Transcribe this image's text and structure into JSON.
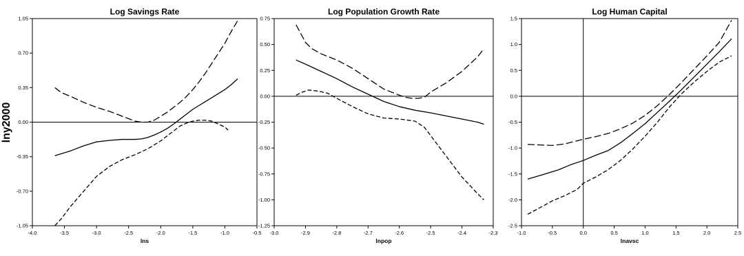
{
  "figure": {
    "shared_ylabel": "lny2000"
  },
  "chart_data": [
    {
      "type": "line",
      "title": "Log Savings Rate",
      "xlabel": "lns",
      "ylabel": "lny2000",
      "xlim": [
        -4.0,
        -0.5
      ],
      "ylim": [
        -1.05,
        1.05
      ],
      "xticks": [
        "-4.0",
        "-3.5",
        "-3.0",
        "-2.5",
        "-2.0",
        "-1.5",
        "-1.0",
        "-0.5"
      ],
      "yticks": [
        "-1.05",
        "-0.70",
        "-0.35",
        "0.00",
        "0.35",
        "0.70",
        "1.05"
      ],
      "reference_lines": {
        "horizontal": 0
      },
      "series": [
        {
          "style": "solid",
          "x": [
            -3.65,
            -3.4,
            -3.2,
            -3.0,
            -2.8,
            -2.6,
            -2.4,
            -2.3,
            -2.2,
            -2.1,
            -2.0,
            -1.9,
            -1.8,
            -1.7,
            -1.6,
            -1.5,
            -1.4,
            -1.3,
            -1.2,
            -1.1,
            -1.0,
            -0.9,
            -0.8
          ],
          "y": [
            -0.34,
            -0.29,
            -0.24,
            -0.2,
            -0.185,
            -0.175,
            -0.175,
            -0.17,
            -0.155,
            -0.13,
            -0.1,
            -0.065,
            -0.02,
            0.03,
            0.08,
            0.13,
            0.17,
            0.21,
            0.25,
            0.29,
            0.33,
            0.38,
            0.44
          ]
        },
        {
          "style": "dashed-upper",
          "x": [
            -3.65,
            -3.55,
            -3.4,
            -3.2,
            -3.0,
            -2.8,
            -2.6,
            -2.4,
            -2.3,
            -2.2,
            -2.1,
            -2.0,
            -1.9,
            -1.8,
            -1.7,
            -1.6,
            -1.5,
            -1.4,
            -1.3,
            -1.2,
            -1.1,
            -1.0,
            -0.9,
            -0.8
          ],
          "y": [
            0.35,
            0.3,
            0.26,
            0.2,
            0.15,
            0.11,
            0.06,
            0.01,
            0.0,
            0.0,
            0.02,
            0.06,
            0.1,
            0.15,
            0.2,
            0.26,
            0.33,
            0.41,
            0.5,
            0.6,
            0.7,
            0.8,
            0.92,
            1.03
          ]
        },
        {
          "style": "dashed-lower",
          "x": [
            -3.65,
            -3.55,
            -3.4,
            -3.2,
            -3.0,
            -2.8,
            -2.6,
            -2.4,
            -2.2,
            -2.1,
            -2.0,
            -1.9,
            -1.8,
            -1.7,
            -1.6,
            -1.5,
            -1.4,
            -1.3,
            -1.2,
            -1.1,
            -1.0,
            -0.95
          ],
          "y": [
            -1.05,
            -0.98,
            -0.85,
            -0.7,
            -0.55,
            -0.45,
            -0.38,
            -0.33,
            -0.27,
            -0.23,
            -0.19,
            -0.14,
            -0.09,
            -0.04,
            -0.01,
            0.01,
            0.02,
            0.02,
            0.01,
            -0.02,
            -0.05,
            -0.08
          ]
        }
      ]
    },
    {
      "type": "line",
      "title": "Log Population Growth Rate",
      "xlabel": "lnpop",
      "ylabel": "lny2000",
      "xlim": [
        -3.0,
        -2.3
      ],
      "ylim": [
        -1.25,
        0.75
      ],
      "xticks": [
        "-3.0",
        "-2.9",
        "-2.8",
        "-2.7",
        "-2.6",
        "-2.5",
        "-2.4",
        "-2.3"
      ],
      "yticks": [
        "-1.25",
        "-1.00",
        "-0.75",
        "-0.50",
        "-0.25",
        "0.00",
        "0.25",
        "0.50",
        "0.75"
      ],
      "reference_lines": {
        "horizontal": 0
      },
      "series": [
        {
          "style": "solid",
          "x": [
            -2.93,
            -2.9,
            -2.85,
            -2.8,
            -2.75,
            -2.7,
            -2.65,
            -2.6,
            -2.55,
            -2.5,
            -2.45,
            -2.4,
            -2.35,
            -2.33
          ],
          "y": [
            0.35,
            0.31,
            0.24,
            0.17,
            0.09,
            0.02,
            -0.05,
            -0.1,
            -0.135,
            -0.16,
            -0.19,
            -0.22,
            -0.25,
            -0.27
          ]
        },
        {
          "style": "dashed-upper",
          "x": [
            -2.93,
            -2.9,
            -2.88,
            -2.85,
            -2.8,
            -2.75,
            -2.7,
            -2.65,
            -2.6,
            -2.58,
            -2.56,
            -2.54,
            -2.52,
            -2.5,
            -2.45,
            -2.4,
            -2.35,
            -2.33
          ],
          "y": [
            0.69,
            0.52,
            0.46,
            0.41,
            0.35,
            0.27,
            0.17,
            0.07,
            0.01,
            -0.01,
            -0.02,
            -0.02,
            -0.01,
            0.04,
            0.13,
            0.24,
            0.38,
            0.46
          ]
        },
        {
          "style": "dashed-lower",
          "x": [
            -2.93,
            -2.91,
            -2.89,
            -2.86,
            -2.83,
            -2.8,
            -2.75,
            -2.7,
            -2.65,
            -2.6,
            -2.55,
            -2.52,
            -2.5,
            -2.45,
            -2.4,
            -2.35,
            -2.33
          ],
          "y": [
            0.01,
            0.04,
            0.06,
            0.05,
            0.03,
            -0.02,
            -0.1,
            -0.17,
            -0.21,
            -0.22,
            -0.24,
            -0.3,
            -0.38,
            -0.58,
            -0.78,
            -0.94,
            -1.0
          ]
        }
      ]
    },
    {
      "type": "line",
      "title": "Log Human Capital",
      "xlabel": "lnavsc",
      "ylabel": "lny2000",
      "xlim": [
        -1.0,
        2.5
      ],
      "ylim": [
        -2.5,
        1.5
      ],
      "xticks": [
        "-1.0",
        "-0.5",
        "0.0",
        "0.5",
        "1.0",
        "1.5",
        "2.0",
        "2.5"
      ],
      "yticks": [
        "-2.5",
        "-2.0",
        "-1.5",
        "-1.0",
        "-0.5",
        "0.0",
        "0.5",
        "1.0",
        "1.5"
      ],
      "reference_lines": {
        "horizontal": 0,
        "vertical": 0
      },
      "series": [
        {
          "style": "solid",
          "x": [
            -0.9,
            -0.7,
            -0.4,
            -0.2,
            0.0,
            0.2,
            0.4,
            0.6,
            0.8,
            1.0,
            1.2,
            1.4,
            1.6,
            1.8,
            2.0,
            2.2,
            2.4
          ],
          "y": [
            -1.6,
            -1.53,
            -1.42,
            -1.32,
            -1.24,
            -1.14,
            -1.05,
            -0.9,
            -0.72,
            -0.53,
            -0.31,
            -0.09,
            0.14,
            0.38,
            0.62,
            0.86,
            1.11
          ]
        },
        {
          "style": "dashed-upper",
          "x": [
            -0.9,
            -0.7,
            -0.5,
            -0.3,
            -0.1,
            0.0,
            0.2,
            0.4,
            0.6,
            0.8,
            1.0,
            1.2,
            1.4,
            1.6,
            1.8,
            2.0,
            2.2,
            2.4
          ],
          "y": [
            -0.93,
            -0.94,
            -0.95,
            -0.92,
            -0.86,
            -0.83,
            -0.78,
            -0.72,
            -0.63,
            -0.52,
            -0.37,
            -0.18,
            0.04,
            0.28,
            0.53,
            0.78,
            1.04,
            1.47
          ]
        },
        {
          "style": "dashed-lower",
          "x": [
            -0.9,
            -0.7,
            -0.5,
            -0.3,
            -0.1,
            0.0,
            0.2,
            0.4,
            0.6,
            0.8,
            1.0,
            1.2,
            1.4,
            1.6,
            1.8,
            2.0,
            2.2,
            2.4
          ],
          "y": [
            -2.28,
            -2.15,
            -2.02,
            -1.92,
            -1.8,
            -1.68,
            -1.56,
            -1.42,
            -1.24,
            -1.02,
            -0.77,
            -0.5,
            -0.2,
            0.06,
            0.28,
            0.48,
            0.66,
            0.78
          ]
        }
      ]
    }
  ]
}
